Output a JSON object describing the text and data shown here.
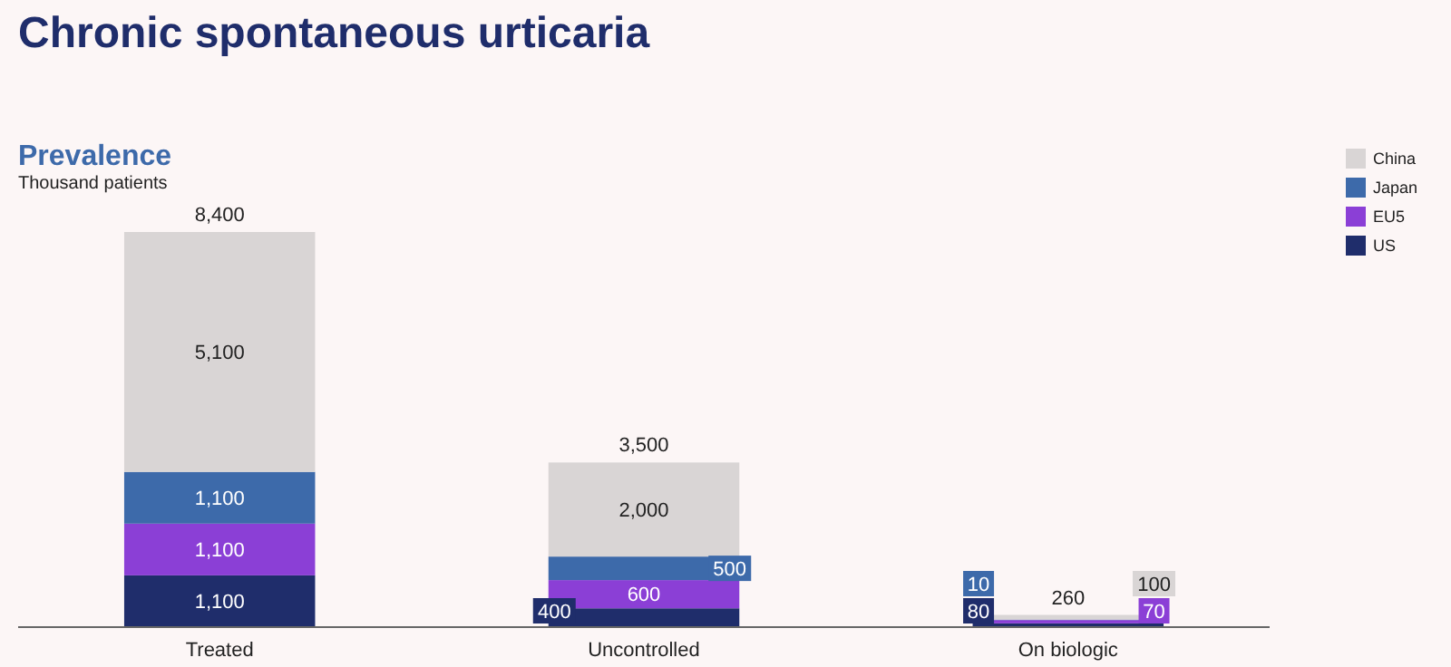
{
  "chart_data": {
    "type": "bar",
    "title": "Chronic spontaneous urticaria",
    "subtitle": "Prevalence",
    "ylabel": "Thousand patients",
    "categories": [
      "Treated",
      "Uncontrolled",
      "On biologic"
    ],
    "stacked": true,
    "legend": "top right",
    "totals": [
      "8,400",
      "3,500",
      "260"
    ],
    "series": [
      {
        "name": "US",
        "color": "#1f2d6b",
        "values": [
          1100,
          400,
          80
        ],
        "value_labels": [
          "1,100",
          "400",
          "80"
        ]
      },
      {
        "name": "EU5",
        "color": "#8b3fd6",
        "values": [
          1100,
          600,
          70
        ],
        "value_labels": [
          "1,100",
          "600",
          "70"
        ]
      },
      {
        "name": "Japan",
        "color": "#3d6aaa",
        "values": [
          1100,
          500,
          10
        ],
        "value_labels": [
          "1,100",
          "500",
          "10"
        ]
      },
      {
        "name": "China",
        "color": "#d9d5d5",
        "values": [
          5100,
          2000,
          100
        ],
        "value_labels": [
          "5,100",
          "2,000",
          "100"
        ]
      }
    ]
  }
}
